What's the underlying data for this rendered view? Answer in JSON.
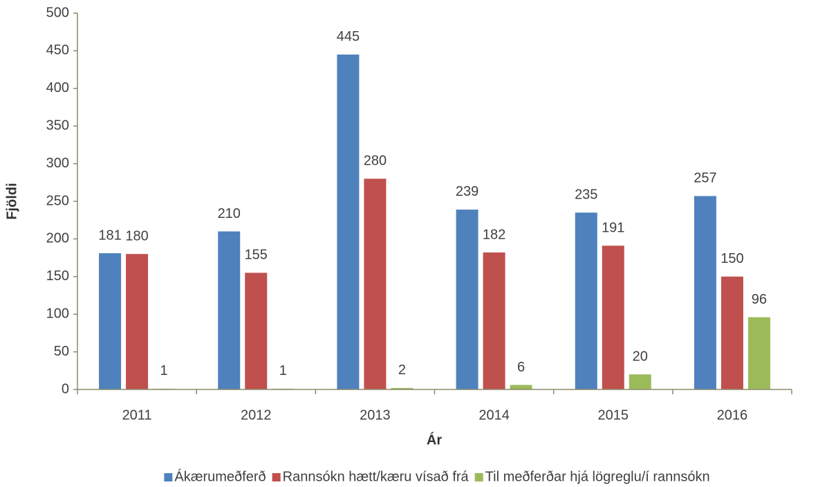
{
  "chart_data": {
    "type": "bar",
    "x_label": "Ár",
    "y_label": "Fjöldi",
    "categories": [
      "2011",
      "2012",
      "2013",
      "2014",
      "2015",
      "2016"
    ],
    "series": [
      {
        "name": "Ákærumeðferð",
        "color": "#4f81bd",
        "values": [
          181,
          210,
          445,
          239,
          235,
          257
        ]
      },
      {
        "name": "Rannsókn hætt/kæru vísað frá",
        "color": "#c0504d",
        "values": [
          180,
          155,
          280,
          182,
          191,
          150
        ]
      },
      {
        "name": "Til meðferðar hjá lögreglu/í rannsókn",
        "color": "#9bbb59",
        "values": [
          1,
          1,
          2,
          6,
          20,
          96
        ]
      }
    ],
    "ylim": [
      0,
      500
    ],
    "yticks": [
      0,
      50,
      100,
      150,
      200,
      250,
      300,
      350,
      400,
      450,
      500
    ],
    "grid": false,
    "legend": "bottom"
  }
}
